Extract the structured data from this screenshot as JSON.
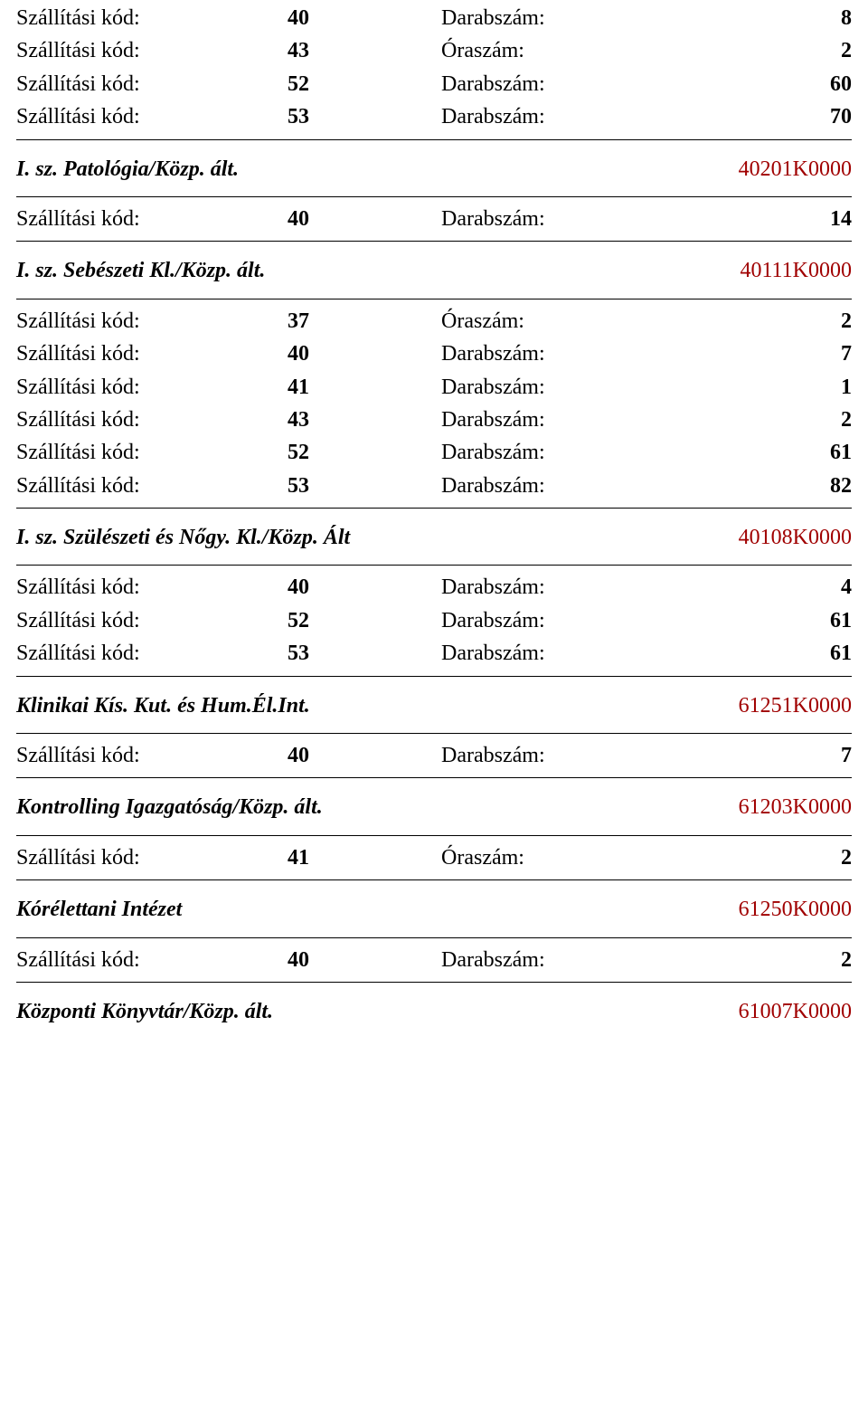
{
  "colors": {
    "code_color": "#a00000",
    "text_color": "#000000",
    "background": "#ffffff",
    "rule_color": "#000000"
  },
  "fonts": {
    "family": "Georgia, Times New Roman, serif",
    "base_size_pt": 18
  },
  "labels": {
    "ship_code": "Szállítási kód:",
    "piece_count": "Darabszám:",
    "hour_count": "Óraszám:"
  },
  "pre_rows": [
    {
      "label": "Szállítási kód:",
      "key": "40",
      "type": "Darabszám:",
      "val": "8"
    },
    {
      "label": "Szállítási kód:",
      "key": "43",
      "type": "Óraszám:",
      "val": "2"
    },
    {
      "label": "Szállítási kód:",
      "key": "52",
      "type": "Darabszám:",
      "val": "60"
    },
    {
      "label": "Szállítási kód:",
      "key": "53",
      "type": "Darabszám:",
      "val": "70"
    }
  ],
  "sections": [
    {
      "title": "I. sz. Patológia/Közp. ált.",
      "code": "40201K0000",
      "rows": [
        {
          "label": "Szállítási kód:",
          "key": "40",
          "type": "Darabszám:",
          "val": "14"
        }
      ]
    },
    {
      "title": "I. sz. Sebészeti Kl./Közp. ált.",
      "code": "40111K0000",
      "rows": [
        {
          "label": "Szállítási kód:",
          "key": "37",
          "type": "Óraszám:",
          "val": "2"
        },
        {
          "label": "Szállítási kód:",
          "key": "40",
          "type": "Darabszám:",
          "val": "7"
        },
        {
          "label": "Szállítási kód:",
          "key": "41",
          "type": "Darabszám:",
          "val": "1"
        },
        {
          "label": "Szállítási kód:",
          "key": "43",
          "type": "Darabszám:",
          "val": "2"
        },
        {
          "label": "Szállítási kód:",
          "key": "52",
          "type": "Darabszám:",
          "val": "61"
        },
        {
          "label": "Szállítási kód:",
          "key": "53",
          "type": "Darabszám:",
          "val": "82"
        }
      ]
    },
    {
      "title": "I. sz. Szülészeti és Nőgy. Kl./Közp. Ált",
      "code": "40108K0000",
      "rows": [
        {
          "label": "Szállítási kód:",
          "key": "40",
          "type": "Darabszám:",
          "val": "4"
        },
        {
          "label": "Szállítási kód:",
          "key": "52",
          "type": "Darabszám:",
          "val": "61"
        },
        {
          "label": "Szállítási kód:",
          "key": "53",
          "type": "Darabszám:",
          "val": "61"
        }
      ]
    },
    {
      "title": "Klinikai Kís. Kut. és Hum.Él.Int.",
      "code": "61251K0000",
      "rows": [
        {
          "label": "Szállítási kód:",
          "key": "40",
          "type": "Darabszám:",
          "val": "7"
        }
      ]
    },
    {
      "title": "Kontrolling Igazgatóság/Közp. ált.",
      "code": "61203K0000",
      "rows": [
        {
          "label": "Szállítási kód:",
          "key": "41",
          "type": "Óraszám:",
          "val": "2"
        }
      ]
    },
    {
      "title": "Kórélettani Intézet",
      "code": "61250K0000",
      "rows": [
        {
          "label": "Szállítási kód:",
          "key": "40",
          "type": "Darabszám:",
          "val": "2"
        }
      ]
    },
    {
      "title": "Központi Könyvtár/Közp. ált.",
      "code": "61007K0000",
      "rows": []
    }
  ]
}
